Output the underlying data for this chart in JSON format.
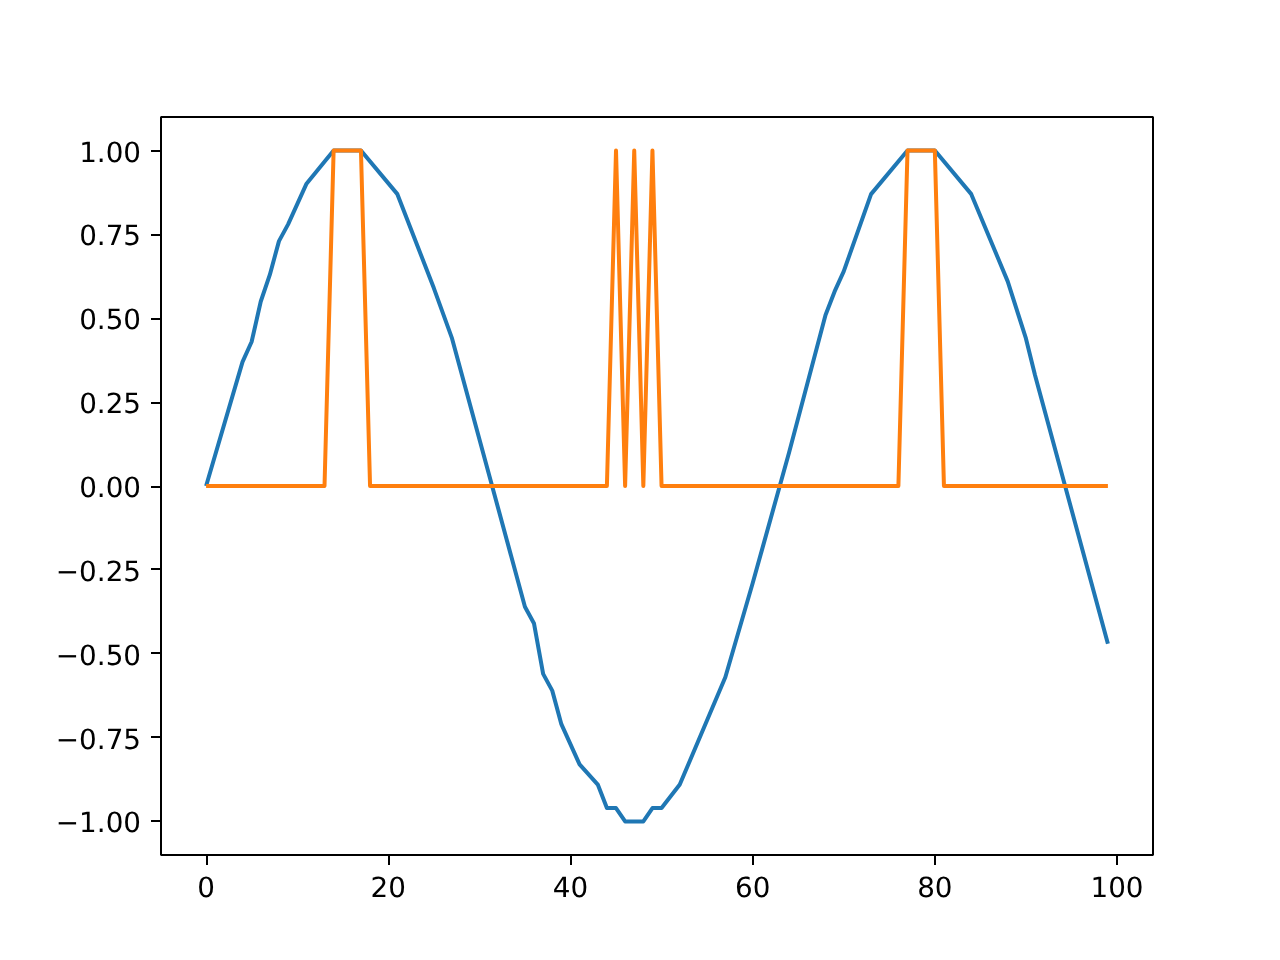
{
  "chart_data": {
    "type": "line",
    "xlim": [
      -4.95,
      103.95
    ],
    "ylim": [
      -1.1,
      1.1
    ],
    "xticks": [
      0,
      20,
      40,
      60,
      80,
      100
    ],
    "yticks": [
      {
        "value": -1,
        "label": "−1.00"
      },
      {
        "value": -0.75,
        "label": "−0.75"
      },
      {
        "value": -0.5,
        "label": "−0.50"
      },
      {
        "value": -0.25,
        "label": "−0.25"
      },
      {
        "value": 0,
        "label": "0.00"
      },
      0.25,
      {
        "value": 0.5,
        "label": "0.50"
      },
      0.75,
      {
        "value": 1,
        "label": "1.00"
      }
    ],
    "line_style": "solid",
    "series": [
      {
        "color": "#1f77b4",
        "x": [
          0,
          4,
          5,
          6,
          7,
          8,
          9,
          11,
          14,
          17,
          21,
          25,
          27,
          35,
          36,
          37,
          38,
          39,
          41,
          43,
          44,
          45,
          46,
          48,
          49,
          50,
          52,
          57,
          60,
          64,
          68,
          69,
          70,
          73,
          77,
          80,
          84,
          88,
          90,
          91,
          99
        ],
        "values": [
          0,
          0.37,
          0.43,
          0.55,
          0.63,
          0.73,
          0.78,
          0.9,
          1.0,
          1.0,
          0.87,
          0.59,
          0.44,
          -0.36,
          -0.41,
          -0.56,
          -0.61,
          -0.71,
          -0.83,
          -0.89,
          -0.96,
          -0.96,
          -1.0,
          -1.0,
          -0.96,
          -0.96,
          -0.89,
          -0.57,
          -0.29,
          0.1,
          0.51,
          0.58,
          0.64,
          0.87,
          1.0,
          1.0,
          0.87,
          0.61,
          0.44,
          0.33,
          -0.47
        ]
      },
      {
        "color": "#ff7f0e",
        "x": [
          0,
          13,
          14,
          17,
          18,
          44,
          45,
          46,
          47,
          48,
          49,
          50,
          76,
          77,
          80,
          81,
          99
        ],
        "values": [
          0,
          0,
          1,
          1,
          0,
          0,
          1,
          0,
          1,
          0,
          1,
          0,
          0,
          1,
          1,
          0,
          0
        ]
      }
    ]
  }
}
